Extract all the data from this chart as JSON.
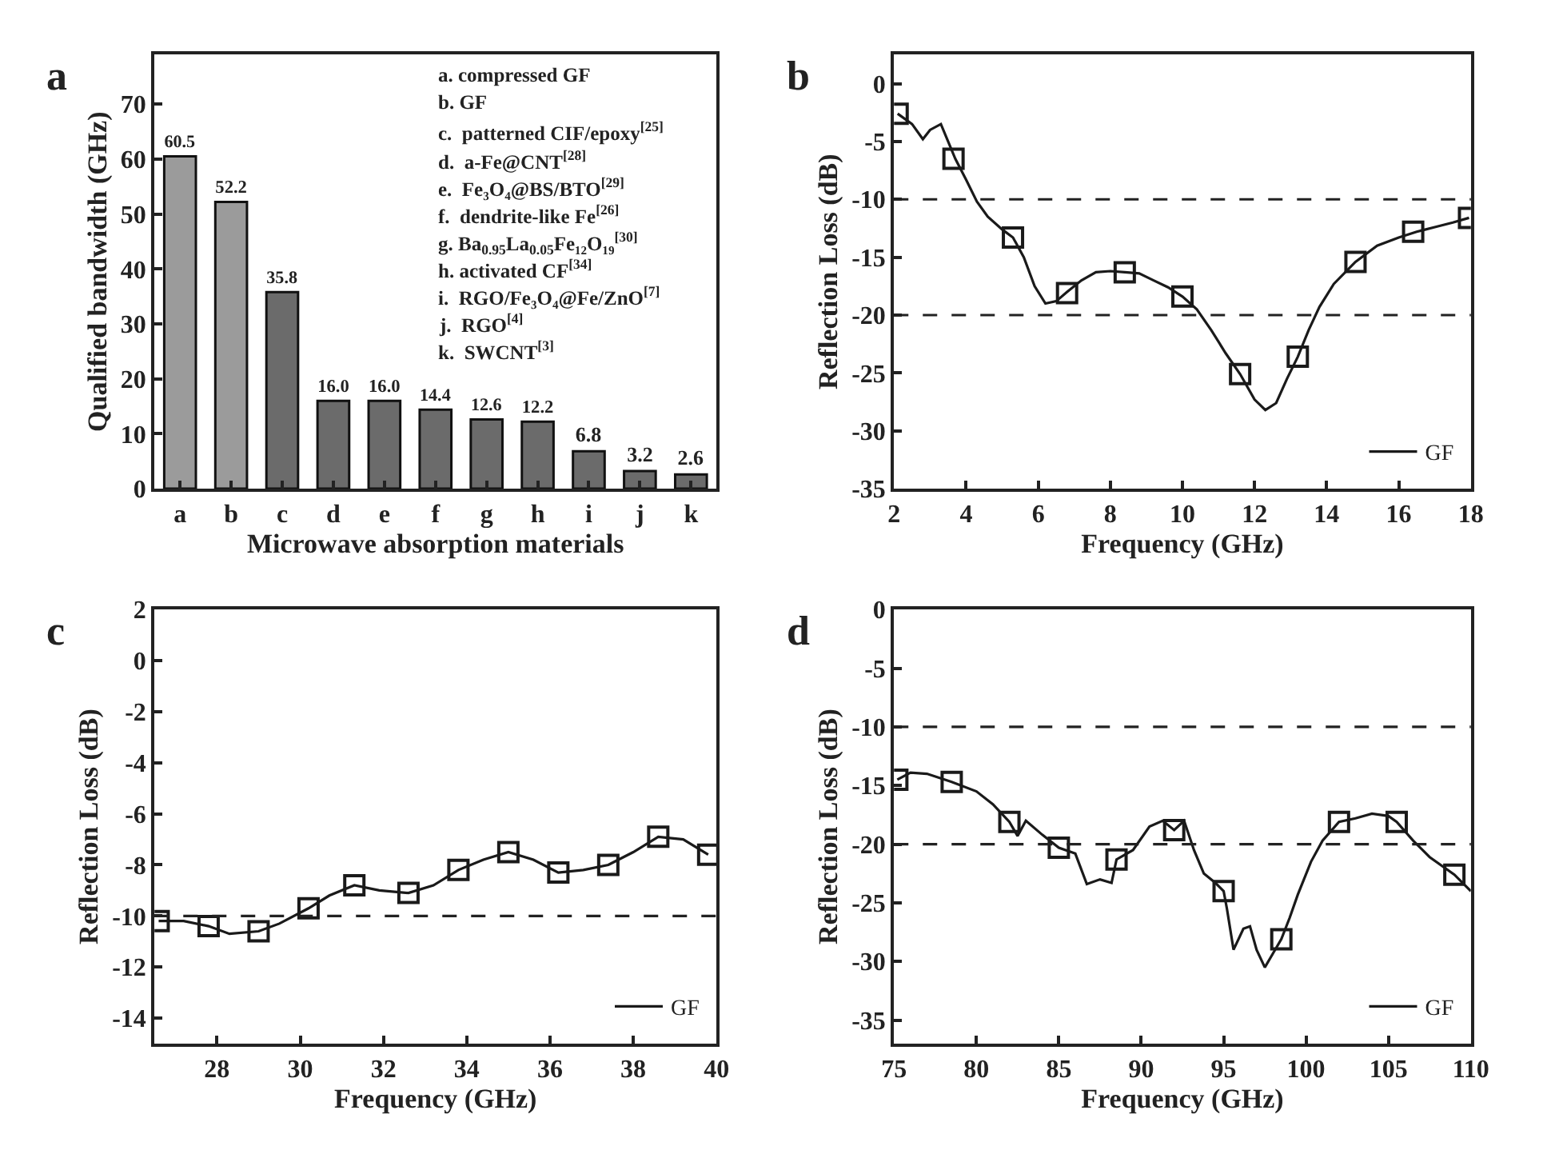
{
  "chart_data": [
    {
      "type": "bar",
      "title": "a",
      "xlabel": "Microwave absorption materials",
      "ylabel": "Qualified bandwidth (GHz)",
      "categories": [
        "a",
        "b",
        "c",
        "d",
        "e",
        "f",
        "g",
        "h",
        "i",
        "j",
        "k"
      ],
      "values": [
        60.5,
        52.2,
        35.8,
        16.0,
        16.0,
        14.4,
        12.6,
        12.2,
        6.8,
        3.2,
        2.6
      ],
      "colors": [
        "#9b9b9b",
        "#9b9b9b",
        "#6b6b6b",
        "#6b6b6b",
        "#6b6b6b",
        "#6b6b6b",
        "#6b6b6b",
        "#6b6b6b",
        "#6b6b6b",
        "#6b6b6b",
        "#6b6b6b"
      ],
      "value_labels": [
        "60.5",
        "52.2",
        "35.8",
        "16.0",
        "16.0",
        "14.4",
        "12.6",
        "12.2",
        "6.8",
        "3.2",
        "2.6"
      ],
      "ylim": [
        0,
        79
      ],
      "yticks": [
        0,
        10,
        20,
        30,
        40,
        50,
        60,
        70
      ],
      "legend": false,
      "annotations": [
        "a. compressed GF",
        "b. GF",
        "c.  patterned CIF/epoxy$^{[25]}$",
        "d.  a-Fe@CNT$^{[28]}$",
        "e.  Fe₃O₄@BS/BTO$^{[29]}$",
        "f.  dendrite-like Fe$^{[26]}$",
        "g. Ba$_{0.95}$La$_{0.05}$Fe₁₂O₁₉$^{[30]}$",
        "h. activated CF$^{[34]}$",
        "i.  RGO/Fe₃O₄@Fe/ZnO$^{[7]}$",
        "j.  RGO$^{[4]}$",
        "k.  SWCNT$^{[3]}$"
      ]
    },
    {
      "type": "line",
      "title": "b",
      "xlabel": "Frequency (GHz)",
      "ylabel": "Reflection Loss (dB)",
      "xlim": [
        2,
        18
      ],
      "xticks": [
        2,
        4,
        6,
        8,
        10,
        12,
        14,
        16,
        18
      ],
      "ylim": [
        -35,
        2.5
      ],
      "yticks": [
        -35,
        -30,
        -25,
        -20,
        -15,
        -10,
        -5,
        0
      ],
      "legend": "bottom right",
      "ref_lines": [
        {
          "axis": "y",
          "value": -10,
          "line_style": "dashed"
        },
        {
          "axis": "y",
          "value": -20,
          "line_style": "dashed"
        }
      ],
      "series": [
        {
          "name": "GF",
          "type": "line",
          "color": "#1a1a1a",
          "marker": "none",
          "line_style": "solid",
          "x": [
            2.1,
            2.5,
            2.8,
            3.0,
            3.3,
            3.5,
            3.7,
            4.0,
            4.3,
            4.6,
            5.0,
            5.3,
            5.6,
            5.9,
            6.2,
            6.5,
            6.8,
            7.2,
            7.6,
            8.0,
            8.4,
            8.8,
            9.2,
            9.6,
            10.0,
            10.4,
            10.8,
            11.2,
            11.6,
            12.0,
            12.3,
            12.6,
            12.9,
            13.2,
            13.5,
            13.8,
            14.2,
            14.8,
            15.4,
            16.0,
            16.5,
            17.0,
            17.5,
            17.95
          ],
          "values": [
            -2.6,
            -3.5,
            -4.8,
            -4.0,
            -3.5,
            -5.0,
            -6.5,
            -8.3,
            -10.2,
            -11.5,
            -12.6,
            -13.3,
            -15.0,
            -17.5,
            -19.0,
            -18.8,
            -18.0,
            -17.0,
            -16.3,
            -16.2,
            -16.3,
            -16.4,
            -17.0,
            -17.6,
            -18.4,
            -19.5,
            -21.3,
            -23.3,
            -25.1,
            -27.3,
            -28.2,
            -27.6,
            -25.5,
            -23.6,
            -21.3,
            -19.3,
            -17.3,
            -15.4,
            -14.0,
            -13.3,
            -12.8,
            -12.4,
            -12.0,
            -11.6
          ]
        },
        {
          "type": "scatter",
          "color": "#1a1a1a",
          "marker": "square",
          "x": [
            2.1,
            3.65,
            5.3,
            6.8,
            8.4,
            10.0,
            11.6,
            13.2,
            14.8,
            16.4,
            17.95
          ],
          "values": [
            -2.6,
            -6.5,
            -13.3,
            -18.1,
            -16.3,
            -18.4,
            -25.1,
            -23.6,
            -15.4,
            -12.8,
            -11.6
          ]
        }
      ]
    },
    {
      "type": "line",
      "title": "c",
      "xlabel": "Frequency (GHz)",
      "ylabel": "Reflection Loss (dB)",
      "xlim": [
        26.5,
        40
      ],
      "xticks": [
        28,
        30,
        32,
        34,
        36,
        38,
        40
      ],
      "ylim": [
        -15,
        2
      ],
      "yticks": [
        -14,
        -12,
        -10,
        -8,
        -6,
        -4,
        -2,
        0,
        2
      ],
      "legend": "bottom right",
      "ref_lines": [
        {
          "axis": "y",
          "value": -10,
          "line_style": "dashed"
        }
      ],
      "series": [
        {
          "name": "GF",
          "type": "line",
          "color": "#1a1a1a",
          "marker": "none",
          "line_style": "solid",
          "x": [
            26.6,
            27.2,
            27.8,
            28.3,
            29.0,
            29.5,
            30.2,
            30.7,
            31.3,
            31.9,
            32.6,
            33.2,
            33.8,
            34.4,
            35.0,
            35.6,
            36.2,
            36.8,
            37.4,
            38.0,
            38.6,
            39.2,
            39.8
          ],
          "values": [
            -10.2,
            -10.2,
            -10.4,
            -10.7,
            -10.6,
            -10.3,
            -9.7,
            -9.2,
            -8.8,
            -9.0,
            -9.1,
            -8.8,
            -8.2,
            -7.8,
            -7.5,
            -7.8,
            -8.3,
            -8.2,
            -8.0,
            -7.5,
            -6.9,
            -7.0,
            -7.6
          ]
        },
        {
          "type": "scatter",
          "color": "#1a1a1a",
          "marker": "square",
          "x": [
            26.6,
            27.8,
            29.0,
            30.2,
            31.3,
            32.6,
            33.8,
            35.0,
            36.2,
            37.4,
            38.6,
            39.8
          ],
          "values": [
            -10.2,
            -10.4,
            -10.6,
            -9.7,
            -8.8,
            -9.1,
            -8.2,
            -7.5,
            -8.3,
            -8.0,
            -6.9,
            -7.6
          ]
        }
      ]
    },
    {
      "type": "line",
      "title": "d",
      "xlabel": "Frequency (GHz)",
      "ylabel": "Reflection Loss (dB)",
      "xlim": [
        75,
        110
      ],
      "xticks": [
        75,
        80,
        85,
        90,
        95,
        100,
        105,
        110
      ],
      "ylim": [
        -37,
        0
      ],
      "yticks": [
        -35,
        -30,
        -25,
        -20,
        -15,
        -10,
        -5,
        0
      ],
      "legend": "bottom right",
      "ref_lines": [
        {
          "axis": "y",
          "value": -10,
          "line_style": "dashed"
        },
        {
          "axis": "y",
          "value": -20,
          "line_style": "dashed"
        }
      ],
      "series": [
        {
          "name": "GF",
          "type": "line",
          "color": "#1a1a1a",
          "marker": "none",
          "line_style": "solid",
          "x": [
            75.2,
            76.0,
            77.0,
            78.5,
            80.0,
            81.0,
            82.0,
            82.5,
            83.0,
            84.0,
            85.0,
            86.0,
            86.7,
            87.5,
            88.2,
            88.5,
            89.5,
            90.5,
            91.3,
            92.0,
            92.6,
            93.2,
            93.8,
            94.5,
            95.0,
            95.2,
            95.6,
            96.2,
            96.6,
            97.0,
            97.5,
            98.0,
            98.5,
            99.0,
            99.5,
            100.3,
            101.0,
            102.0,
            103.0,
            104.0,
            105.0,
            105.5,
            106.5,
            107.5,
            109.0,
            110.0
          ],
          "values": [
            -14.5,
            -13.9,
            -14.0,
            -14.7,
            -15.5,
            -16.6,
            -18.1,
            -19.3,
            -18.0,
            -19.2,
            -20.3,
            -20.8,
            -23.4,
            -23.0,
            -23.3,
            -21.3,
            -20.5,
            -18.5,
            -18.0,
            -18.8,
            -18.0,
            -20.5,
            -22.5,
            -23.3,
            -24.0,
            -25.5,
            -29.0,
            -27.2,
            -27.0,
            -29.0,
            -30.5,
            -29.3,
            -28.1,
            -26.3,
            -24.3,
            -21.5,
            -19.7,
            -18.1,
            -17.8,
            -17.4,
            -17.6,
            -18.1,
            -19.7,
            -21.1,
            -22.6,
            -24.0
          ]
        },
        {
          "type": "scatter",
          "color": "#1a1a1a",
          "marker": "square",
          "x": [
            75.2,
            78.5,
            82.0,
            85.0,
            88.5,
            92.0,
            95.0,
            98.5,
            102.0,
            105.5,
            109.0
          ],
          "values": [
            -14.5,
            -14.7,
            -18.1,
            -20.3,
            -21.3,
            -18.8,
            -24.0,
            -28.1,
            -18.1,
            -18.1,
            -22.6
          ]
        }
      ]
    }
  ]
}
